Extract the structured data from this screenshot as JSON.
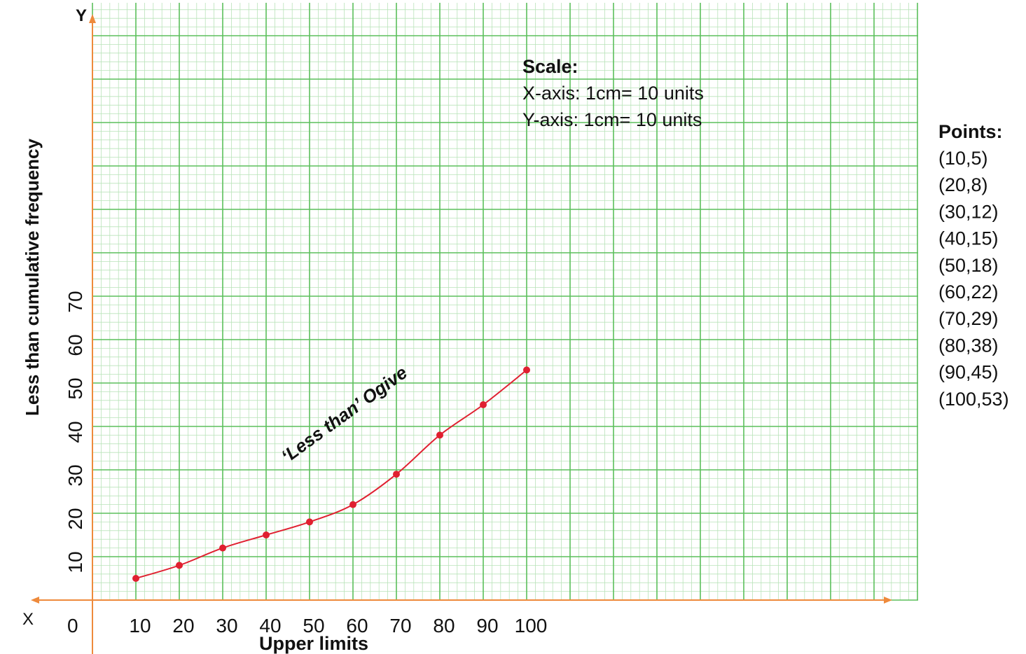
{
  "chart_data": {
    "type": "line",
    "xlabel": "Upper limits",
    "ylabel": "Less than cumulative frequency",
    "x_axis_letter": "X",
    "y_axis_letter": "Y",
    "origin_label": "0",
    "x_ticks": [
      10,
      20,
      30,
      40,
      50,
      60,
      70,
      80,
      90,
      100
    ],
    "y_ticks": [
      10,
      20,
      30,
      40,
      50,
      60,
      70
    ],
    "series": [
      {
        "name": "‘Less than’ Ogive",
        "x": [
          10,
          20,
          30,
          40,
          50,
          60,
          70,
          80,
          90,
          100
        ],
        "y": [
          5,
          8,
          12,
          15,
          18,
          22,
          29,
          38,
          45,
          53
        ]
      }
    ],
    "grid": true,
    "colors": {
      "grid_minor": "#b9e3b9",
      "grid_major": "#5cbf5c",
      "curve": "#e02030",
      "axis": "#ee8a3c"
    }
  },
  "scale": {
    "title": "Scale:",
    "x_axis": "X-axis: 1cm= 10 units",
    "y_axis": "Y-axis: 1cm= 10 units"
  },
  "points_panel": {
    "title": "Points:",
    "items": [
      "(10,5)",
      "(20,8)",
      "(30,12)",
      "(40,15)",
      "(50,18)",
      "(60,22)",
      "(70,29)",
      "(80,38)",
      "(90,45)",
      "(100,53)"
    ]
  }
}
